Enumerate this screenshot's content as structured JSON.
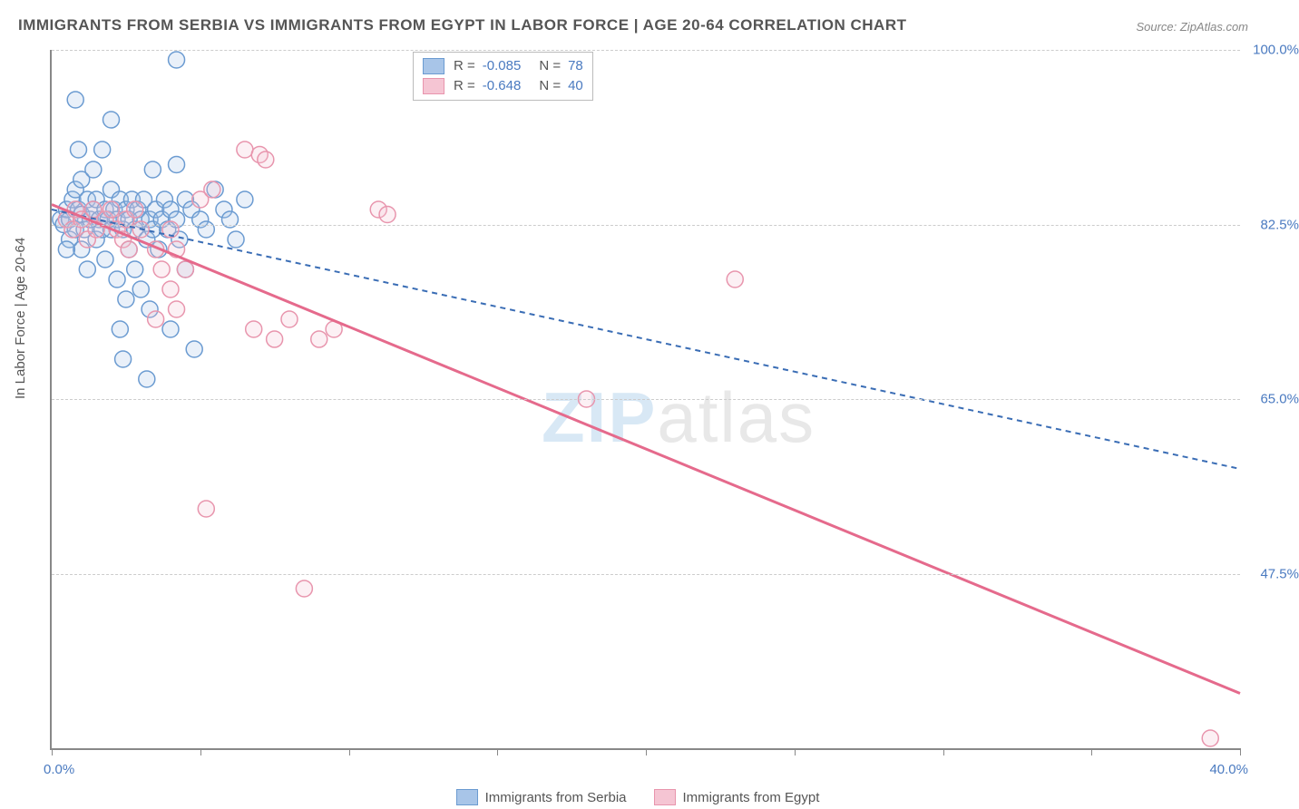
{
  "title": "IMMIGRANTS FROM SERBIA VS IMMIGRANTS FROM EGYPT IN LABOR FORCE | AGE 20-64 CORRELATION CHART",
  "source": "Source: ZipAtlas.com",
  "watermark_a": "ZIP",
  "watermark_b": "atlas",
  "yaxis_title": "In Labor Force | Age 20-64",
  "chart": {
    "type": "scatter-correlation",
    "background_color": "#ffffff",
    "grid_color": "#cccccc",
    "grid_dash": "4 4",
    "axis_color": "#888888",
    "marker_radius": 9,
    "marker_stroke_width": 1.5,
    "marker_fill_opacity": 0.25,
    "xlim": [
      0,
      40
    ],
    "ylim": [
      30,
      100
    ],
    "ygrid": [
      47.5,
      65.0,
      82.5,
      100.0
    ],
    "ytick_labels": [
      "47.5%",
      "65.0%",
      "82.5%",
      "100.0%"
    ],
    "xticks": [
      0,
      5,
      10,
      15,
      20,
      25,
      30,
      35,
      40
    ],
    "xaxis_min_label": "0.0%",
    "xaxis_max_label": "40.0%",
    "label_color": "#4a7ac0",
    "label_fontsize": 15
  },
  "series": [
    {
      "id": "serbia",
      "name": "Immigrants from Serbia",
      "color_stroke": "#6b9bd1",
      "color_fill": "#a8c5e8",
      "trend_color": "#3a6db5",
      "trend_dash": "6 5",
      "trend_width": 2,
      "trend": {
        "x1": 0,
        "y1": 84.0,
        "x2": 40,
        "y2": 58.0
      },
      "R": "-0.085",
      "N": "78",
      "points": [
        [
          0.3,
          83
        ],
        [
          0.4,
          82.5
        ],
        [
          0.5,
          84
        ],
        [
          0.6,
          83
        ],
        [
          0.6,
          81
        ],
        [
          0.7,
          85
        ],
        [
          0.8,
          82
        ],
        [
          0.8,
          86
        ],
        [
          0.9,
          84
        ],
        [
          1.0,
          83.5
        ],
        [
          1.0,
          80
        ],
        [
          1.0,
          87
        ],
        [
          1.1,
          82
        ],
        [
          1.2,
          85
        ],
        [
          1.2,
          78
        ],
        [
          1.3,
          83
        ],
        [
          1.4,
          84
        ],
        [
          1.4,
          88
        ],
        [
          1.5,
          81
        ],
        [
          1.5,
          85
        ],
        [
          1.6,
          83
        ],
        [
          1.7,
          82
        ],
        [
          1.7,
          90
        ],
        [
          1.8,
          84
        ],
        [
          1.8,
          79
        ],
        [
          1.9,
          83
        ],
        [
          2.0,
          86
        ],
        [
          2.0,
          82
        ],
        [
          2.0,
          93
        ],
        [
          2.1,
          84
        ],
        [
          2.2,
          83
        ],
        [
          2.2,
          77
        ],
        [
          2.3,
          85
        ],
        [
          2.3,
          72
        ],
        [
          2.4,
          82
        ],
        [
          2.4,
          69
        ],
        [
          2.5,
          84
        ],
        [
          2.5,
          75
        ],
        [
          0.8,
          95
        ],
        [
          2.6,
          80
        ],
        [
          2.6,
          83
        ],
        [
          2.7,
          85
        ],
        [
          2.8,
          82
        ],
        [
          2.8,
          78
        ],
        [
          2.9,
          84
        ],
        [
          3.0,
          83
        ],
        [
          3.0,
          76
        ],
        [
          3.1,
          85
        ],
        [
          3.2,
          81
        ],
        [
          3.2,
          67
        ],
        [
          3.3,
          83
        ],
        [
          3.3,
          74
        ],
        [
          3.4,
          88
        ],
        [
          3.4,
          82
        ],
        [
          3.5,
          84
        ],
        [
          3.6,
          80
        ],
        [
          3.7,
          83
        ],
        [
          3.8,
          85
        ],
        [
          0.5,
          80
        ],
        [
          3.9,
          82
        ],
        [
          4.0,
          84
        ],
        [
          4.0,
          72
        ],
        [
          4.2,
          99
        ],
        [
          4.2,
          83
        ],
        [
          4.3,
          81
        ],
        [
          4.5,
          85
        ],
        [
          4.5,
          78
        ],
        [
          4.7,
          84
        ],
        [
          4.8,
          70
        ],
        [
          5.0,
          83
        ],
        [
          4.2,
          88.5
        ],
        [
          5.2,
          82
        ],
        [
          5.5,
          86
        ],
        [
          5.8,
          84
        ],
        [
          0.9,
          90
        ],
        [
          6.0,
          83
        ],
        [
          6.2,
          81
        ],
        [
          6.5,
          85
        ]
      ]
    },
    {
      "id": "egypt",
      "name": "Immigrants from Egypt",
      "color_stroke": "#e895ad",
      "color_fill": "#f5c5d3",
      "trend_color": "#e56a8c",
      "trend_dash": "none",
      "trend_width": 3,
      "trend": {
        "x1": 0,
        "y1": 84.5,
        "x2": 40,
        "y2": 35.5
      },
      "R": "-0.648",
      "N": "40",
      "points": [
        [
          0.5,
          83
        ],
        [
          0.7,
          82
        ],
        [
          0.8,
          84
        ],
        [
          1.0,
          83
        ],
        [
          1.2,
          81
        ],
        [
          1.4,
          84
        ],
        [
          1.5,
          82
        ],
        [
          1.8,
          83
        ],
        [
          2.0,
          84
        ],
        [
          2.2,
          82
        ],
        [
          2.4,
          81
        ],
        [
          2.5,
          83
        ],
        [
          2.6,
          80
        ],
        [
          2.8,
          84
        ],
        [
          3.0,
          82
        ],
        [
          3.5,
          73
        ],
        [
          3.5,
          80
        ],
        [
          3.7,
          78
        ],
        [
          4.0,
          76
        ],
        [
          4.0,
          82
        ],
        [
          4.2,
          74
        ],
        [
          4.2,
          80
        ],
        [
          4.5,
          78
        ],
        [
          5.0,
          85
        ],
        [
          5.2,
          54
        ],
        [
          5.4,
          86
        ],
        [
          6.5,
          90
        ],
        [
          6.8,
          72
        ],
        [
          7.0,
          89.5
        ],
        [
          7.2,
          89
        ],
        [
          7.5,
          71
        ],
        [
          8.0,
          73
        ],
        [
          8.5,
          46
        ],
        [
          9.0,
          71
        ],
        [
          9.5,
          72
        ],
        [
          11.0,
          84
        ],
        [
          11.3,
          83.5
        ],
        [
          18.0,
          65
        ],
        [
          23.0,
          77
        ],
        [
          39.0,
          31
        ]
      ]
    }
  ],
  "legend_top": {
    "R_label": "R =",
    "N_label": "N ="
  }
}
